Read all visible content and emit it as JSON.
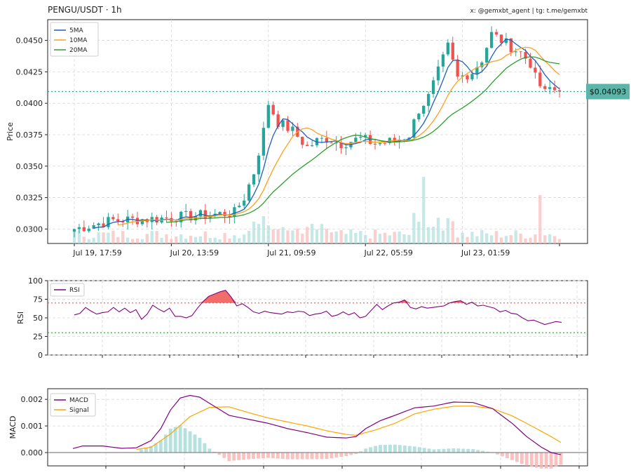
{
  "header": {
    "title": "PENGU/USDT · 1h",
    "credit": "x: @gemxbt_agent | tg: t.me/gemxbt"
  },
  "colors": {
    "up": "#26a69a",
    "down": "#ef5350",
    "ma5": "#1f5fbf",
    "ma10": "#ff9f1c",
    "ma20": "#2ca02c",
    "rsi": "#800080",
    "macd": "#800080",
    "signal": "#ffa500",
    "price_line": "#26a69a"
  },
  "chart_data": [
    {
      "type": "candlestick",
      "ylabel": "Price",
      "ylim": [
        0.02885,
        0.04665
      ],
      "yticks": [
        "0.0300",
        "0.0325",
        "0.0350",
        "0.0375",
        "0.0400",
        "0.0425",
        "0.0450"
      ],
      "yticks_values": [
        0.03,
        0.0325,
        0.035,
        0.0375,
        0.04,
        0.0425,
        0.045
      ],
      "xtick_labels": [
        "Jul 19, 17:59",
        "Jul 20, 13:59",
        "Jul 21, 09:59",
        "Jul 22, 05:59",
        "Jul 23, 01:59"
      ],
      "xtick_bar_index": [
        0,
        20,
        40,
        60,
        80
      ],
      "legend": [
        "5MA",
        "10MA",
        "20MA"
      ],
      "current_price_label": "$0.04093",
      "current_price": 0.04093,
      "grid": true,
      "key_points": [
        [
          0,
          0.03
        ],
        [
          8,
          0.0307
        ],
        [
          16,
          0.0308
        ],
        [
          23,
          0.031
        ],
        [
          30,
          0.0312
        ],
        [
          33,
          0.0313
        ],
        [
          35,
          0.0325
        ],
        [
          37,
          0.0345
        ],
        [
          39,
          0.0378
        ],
        [
          40,
          0.04
        ],
        [
          42,
          0.0385
        ],
        [
          45,
          0.0378
        ],
        [
          48,
          0.0365
        ],
        [
          50,
          0.037
        ],
        [
          52,
          0.0372
        ],
        [
          55,
          0.0368
        ],
        [
          59,
          0.0372
        ],
        [
          62,
          0.0368
        ],
        [
          66,
          0.037
        ],
        [
          69,
          0.0375
        ],
        [
          71,
          0.0395
        ],
        [
          73,
          0.0405
        ],
        [
          75,
          0.0425
        ],
        [
          77,
          0.0445
        ],
        [
          79,
          0.042
        ],
        [
          82,
          0.0425
        ],
        [
          84,
          0.0435
        ],
        [
          86,
          0.0455
        ],
        [
          88,
          0.045
        ],
        [
          90,
          0.0445
        ],
        [
          92,
          0.044
        ],
        [
          94,
          0.0432
        ],
        [
          95,
          0.042
        ],
        [
          97,
          0.0408
        ],
        [
          98,
          0.0412
        ],
        [
          100,
          0.04093
        ]
      ],
      "volume_pattern": [
        0.25,
        0.2,
        0.15,
        0.2,
        0.3,
        0.25,
        0.2,
        0.15,
        0.4,
        0.3
      ]
    },
    {
      "type": "line",
      "ylabel": "RSI",
      "ylim": [
        0,
        100
      ],
      "yticks": [
        "0",
        "25",
        "50",
        "75",
        "100"
      ],
      "yticks_values": [
        0,
        25,
        50,
        75,
        100
      ],
      "legend": [
        "RSI"
      ],
      "overbought": 70,
      "oversold": 30,
      "values": [
        54,
        56,
        64,
        59,
        55,
        57,
        58,
        64,
        58,
        63,
        57,
        61,
        48,
        55,
        67,
        62,
        58,
        63,
        52,
        52,
        50,
        53,
        63,
        72,
        79,
        82,
        85,
        87,
        78,
        66,
        69,
        64,
        58,
        56,
        59,
        57,
        56,
        55,
        58,
        57,
        59,
        58,
        53,
        55,
        56,
        59,
        52,
        54,
        58,
        54,
        57,
        50,
        52,
        60,
        68,
        61,
        66,
        70,
        71,
        74,
        64,
        62,
        65,
        63,
        64,
        65,
        66,
        70,
        72,
        73,
        68,
        71,
        66,
        67,
        65,
        63,
        58,
        60,
        56,
        55,
        50,
        46,
        47,
        44,
        41,
        43,
        45,
        44
      ]
    },
    {
      "type": "macd",
      "ylabel": "MACD",
      "ylim": [
        -0.0005,
        0.0024
      ],
      "yticks": [
        "0.000",
        "0.001",
        "0.002"
      ],
      "yticks_values": [
        0,
        0.001,
        0.002
      ],
      "legend": [
        "MACD",
        "Signal"
      ],
      "macd_key_points": [
        [
          0,
          0.00015
        ],
        [
          2,
          0.00025
        ],
        [
          6,
          0.00025
        ],
        [
          10,
          0.00016
        ],
        [
          13,
          0.00018
        ],
        [
          16,
          0.00045
        ],
        [
          18,
          0.0009
        ],
        [
          20,
          0.0016
        ],
        [
          22,
          0.00205
        ],
        [
          24,
          0.00215
        ],
        [
          26,
          0.00208
        ],
        [
          28,
          0.00185
        ],
        [
          32,
          0.0014
        ],
        [
          36,
          0.00125
        ],
        [
          40,
          0.0011
        ],
        [
          44,
          0.0009
        ],
        [
          48,
          0.00075
        ],
        [
          52,
          0.00058
        ],
        [
          56,
          0.00055
        ],
        [
          58,
          0.0006
        ],
        [
          60,
          0.0009
        ],
        [
          63,
          0.0012
        ],
        [
          66,
          0.0014
        ],
        [
          70,
          0.00168
        ],
        [
          74,
          0.00175
        ],
        [
          78,
          0.0019
        ],
        [
          82,
          0.00188
        ],
        [
          86,
          0.00165
        ],
        [
          90,
          0.0011
        ],
        [
          93,
          0.0006
        ],
        [
          96,
          0.0002
        ],
        [
          98,
          0
        ],
        [
          100,
          -8e-05
        ]
      ],
      "signal_key_points": [
        [
          13,
          0.00012
        ],
        [
          16,
          0.0002
        ],
        [
          20,
          0.0007
        ],
        [
          24,
          0.00135
        ],
        [
          28,
          0.0017
        ],
        [
          32,
          0.00172
        ],
        [
          36,
          0.0015
        ],
        [
          40,
          0.0013
        ],
        [
          44,
          0.00115
        ],
        [
          48,
          0.001
        ],
        [
          52,
          0.00082
        ],
        [
          56,
          0.00068
        ],
        [
          58,
          0.00065
        ],
        [
          62,
          0.00085
        ],
        [
          66,
          0.0011
        ],
        [
          70,
          0.00145
        ],
        [
          74,
          0.00163
        ],
        [
          78,
          0.00174
        ],
        [
          82,
          0.00175
        ],
        [
          86,
          0.00165
        ],
        [
          90,
          0.00138
        ],
        [
          94,
          0.001
        ],
        [
          98,
          0.0006
        ],
        [
          100,
          0.00038
        ]
      ],
      "histogram_shape": "positive bars from about the 18% point to 45%, negative bars to 57%, positive to 83%, negative to the end"
    }
  ]
}
